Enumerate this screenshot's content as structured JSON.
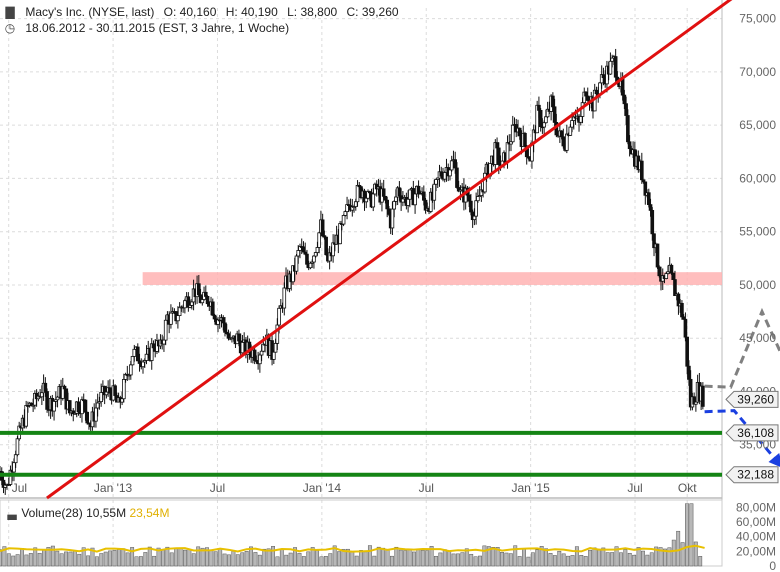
{
  "header": {
    "title": "Macy's Inc. (NYSE, last)",
    "open": "O: 40,160",
    "high": "H: 40,190",
    "low": "L: 38,800",
    "close": "C: 39,260",
    "range": "18.06.2012 - 30.11.2015 (EST, 3 Jahre, 1 Woche)",
    "chart_icon": "candlestick-icon",
    "clock_icon": "clock-icon"
  },
  "volume_legend": {
    "label": "Volume(28)",
    "value1": "10,55M",
    "value2": "23,54M"
  },
  "colors": {
    "candle": "#111111",
    "trendline": "#e01010",
    "support": "#148414",
    "resistance_zone": "#ffb3b3",
    "forecast_up": "#808080",
    "forecast_down": "#1a3fe0",
    "volume_bar": "#b8b8b8",
    "volume_ma": "#e8c000"
  },
  "chart_data": {
    "type": "candlestick",
    "price_axis": {
      "min": 30000,
      "max": 76000,
      "ticks": [
        "75,000",
        "70,000",
        "65,000",
        "60,000",
        "55,000",
        "50,000",
        "45,000",
        "40,000",
        "35,000"
      ],
      "tick_values": [
        75000,
        70000,
        65000,
        60000,
        55000,
        50000,
        45000,
        40000,
        35000
      ]
    },
    "x_axis": {
      "labels": [
        "Jul",
        "Jan '13",
        "Jul",
        "Jan '14",
        "Jul",
        "Jan '15",
        "Jul",
        "Okt"
      ],
      "positions": [
        0.5,
        6.5,
        12.5,
        18.5,
        24.5,
        30.5,
        36.5,
        39.5
      ],
      "range": [
        0,
        41.5
      ]
    },
    "price_labels": [
      {
        "value": 39260,
        "text": "39,260"
      },
      {
        "value": 36108,
        "text": "36,108"
      },
      {
        "value": 32188,
        "text": "32,188"
      }
    ],
    "support_levels": [
      36108,
      32188
    ],
    "resistance_zone": [
      50000,
      51200
    ],
    "trendline": [
      {
        "x": 2.7,
        "price": 30000
      },
      {
        "x": 43.0,
        "price": 78000
      }
    ],
    "forecast_up": [
      {
        "x": 40.5,
        "price": 40500
      },
      {
        "x": 42.0,
        "price": 40400
      },
      {
        "x": 43.8,
        "price": 47500
      },
      {
        "x": 46.5,
        "price": 37800
      }
    ],
    "forecast_down": [
      {
        "x": 40.5,
        "price": 38100
      },
      {
        "x": 42.2,
        "price": 38200
      },
      {
        "x": 45.0,
        "price": 32800
      }
    ],
    "closes": [
      32500,
      31000,
      34000,
      36500,
      38500,
      39000,
      40300,
      38800,
      39300,
      40200,
      38000,
      38800,
      38800,
      36800,
      39000,
      39800,
      40000,
      38600,
      41000,
      43600,
      43300,
      42800,
      44500,
      44000,
      47000,
      46800,
      48000,
      48800,
      49500,
      48400,
      48800,
      47000,
      46500,
      44500,
      45000,
      44000,
      43800,
      43500,
      45000,
      43500,
      47000,
      50000,
      51000,
      53500,
      52000,
      53000,
      55500,
      52000,
      54000,
      55200,
      57500,
      58500,
      59000,
      57800,
      59000,
      58000,
      56000,
      59000,
      58000,
      58200,
      59000,
      57500,
      58000,
      60300,
      61000,
      61500,
      58500,
      58500,
      56500,
      59000,
      61000,
      62500,
      61000,
      63500,
      65000,
      63500,
      62000,
      66000,
      65000,
      67000,
      64000,
      63500,
      66000,
      65000,
      68500,
      67000,
      69000,
      70000,
      71000,
      68500,
      64000,
      62000,
      60500,
      58000,
      53000,
      50000,
      51000,
      49000,
      46800,
      38800,
      40200,
      39260
    ],
    "volume_axis": {
      "max": 90000000,
      "ticks": [
        "80,00M",
        "60,00M",
        "40,00M",
        "20,00M",
        "0"
      ],
      "tick_values": [
        80000000,
        60000000,
        40000000,
        20000000,
        0
      ]
    },
    "volume_ma_level": 22000000
  }
}
